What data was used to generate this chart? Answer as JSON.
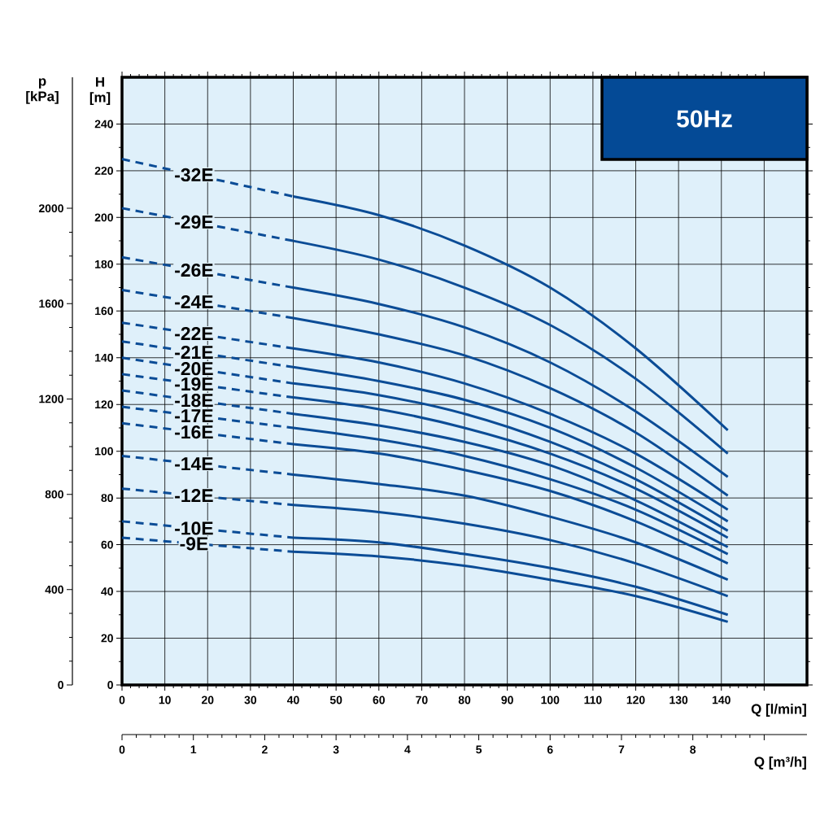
{
  "chart_data": {
    "type": "line",
    "title": "50Hz",
    "xlabel": "Q [l/min]",
    "ylabel": "H [m]",
    "y2label": "p [kPa]",
    "x2label": "Q [m³/h]",
    "xlim": [
      0,
      160
    ],
    "xticks": [
      0,
      10,
      20,
      30,
      40,
      50,
      60,
      70,
      80,
      90,
      100,
      110,
      120,
      130,
      140,
      {
        "value": 150,
        "label": null
      }
    ],
    "ylim": [
      0,
      260
    ],
    "yticks": [
      0,
      20,
      40,
      60,
      80,
      100,
      120,
      140,
      160,
      180,
      200,
      220,
      240
    ],
    "y2lim": [
      0,
      2550
    ],
    "y2ticks": [
      0,
      400,
      800,
      1200,
      1600,
      2000
    ],
    "x2lim": [
      0,
      9.6
    ],
    "x2ticks": [
      0,
      1,
      2,
      3,
      4,
      5,
      6,
      7,
      8,
      {
        "value": 9,
        "label": null
      }
    ],
    "grid": true,
    "series": [
      {
        "name": "-32E",
        "color": "#0b4c96",
        "line_style": "dashed",
        "x": [
          0,
          40
        ],
        "values": [
          225,
          209
        ]
      },
      {
        "color": "#0b4c96",
        "line_style": "solid",
        "x": [
          40,
          60,
          80,
          100,
          120,
          141.5
        ],
        "values": [
          209,
          201,
          188,
          170,
          144,
          109
        ]
      },
      {
        "name": "-29E",
        "color": "#0b4c96",
        "line_style": "dashed",
        "x": [
          0,
          40
        ],
        "values": [
          204,
          190
        ]
      },
      {
        "color": "#0b4c96",
        "line_style": "solid",
        "x": [
          40,
          60,
          80,
          100,
          120,
          141.5
        ],
        "values": [
          190,
          182,
          170,
          154,
          131,
          99
        ]
      },
      {
        "name": "-26E",
        "color": "#0b4c96",
        "line_style": "dashed",
        "x": [
          0,
          40
        ],
        "values": [
          183,
          170
        ]
      },
      {
        "color": "#0b4c96",
        "line_style": "solid",
        "x": [
          40,
          60,
          80,
          100,
          120,
          141.5
        ],
        "values": [
          170,
          163,
          153,
          138,
          117,
          89
        ]
      },
      {
        "name": "-24E",
        "color": "#0b4c96",
        "line_style": "dashed",
        "x": [
          0,
          40
        ],
        "values": [
          169,
          157
        ]
      },
      {
        "color": "#0b4c96",
        "line_style": "solid",
        "x": [
          40,
          60,
          80,
          100,
          120,
          141.5
        ],
        "values": [
          157,
          150,
          141,
          127,
          108,
          81
        ]
      },
      {
        "name": "-22E",
        "color": "#0b4c96",
        "line_style": "dashed",
        "x": [
          0,
          40
        ],
        "values": [
          155,
          144
        ]
      },
      {
        "color": "#0b4c96",
        "line_style": "solid",
        "x": [
          40,
          60,
          80,
          100,
          120,
          141.5
        ],
        "values": [
          144,
          138,
          129,
          116,
          99,
          75
        ]
      },
      {
        "name": "-21E",
        "color": "#0b4c96",
        "line_style": "dashed",
        "x": [
          0,
          40
        ],
        "values": [
          147,
          136
        ]
      },
      {
        "color": "#0b4c96",
        "line_style": "solid",
        "x": [
          40,
          60,
          80,
          100,
          120,
          141.5
        ],
        "values": [
          136,
          130,
          122,
          110,
          93,
          70
        ]
      },
      {
        "name": "-20E",
        "color": "#0b4c96",
        "line_style": "dashed",
        "x": [
          0,
          40
        ],
        "values": [
          140,
          129
        ]
      },
      {
        "color": "#0b4c96",
        "line_style": "solid",
        "x": [
          40,
          60,
          80,
          100,
          120,
          141.5
        ],
        "values": [
          129,
          124,
          116,
          104,
          88,
          66
        ]
      },
      {
        "name": "-19E",
        "color": "#0b4c96",
        "line_style": "dashed",
        "x": [
          0,
          40
        ],
        "values": [
          133,
          123
        ]
      },
      {
        "color": "#0b4c96",
        "line_style": "solid",
        "x": [
          40,
          60,
          80,
          100,
          120,
          141.5
        ],
        "values": [
          123,
          118,
          110,
          99,
          84,
          63
        ]
      },
      {
        "name": "-18E",
        "color": "#0b4c96",
        "line_style": "dashed",
        "x": [
          0,
          40
        ],
        "values": [
          126,
          116
        ]
      },
      {
        "color": "#0b4c96",
        "line_style": "solid",
        "x": [
          40,
          60,
          80,
          100,
          120,
          141.5
        ],
        "values": [
          116,
          111,
          104,
          94,
          79,
          59
        ]
      },
      {
        "name": "-17E",
        "color": "#0b4c96",
        "line_style": "dashed",
        "x": [
          0,
          40
        ],
        "values": [
          119,
          110
        ]
      },
      {
        "color": "#0b4c96",
        "line_style": "solid",
        "x": [
          40,
          60,
          80,
          100,
          120,
          141.5
        ],
        "values": [
          110,
          105,
          98,
          88,
          75,
          56
        ]
      },
      {
        "name": "-16E",
        "color": "#0b4c96",
        "line_style": "dashed",
        "x": [
          0,
          40
        ],
        "values": [
          112,
          103
        ]
      },
      {
        "color": "#0b4c96",
        "line_style": "solid",
        "x": [
          40,
          60,
          80,
          100,
          120,
          141.5
        ],
        "values": [
          103,
          99,
          92,
          83,
          70,
          52
        ]
      },
      {
        "name": "-14E",
        "color": "#0b4c96",
        "line_style": "dashed",
        "x": [
          0,
          40
        ],
        "values": [
          98,
          90
        ]
      },
      {
        "color": "#0b4c96",
        "line_style": "solid",
        "x": [
          40,
          60,
          80,
          100,
          120,
          141.5
        ],
        "values": [
          90,
          86,
          81,
          72,
          61,
          45
        ]
      },
      {
        "name": "-12E",
        "color": "#0b4c96",
        "line_style": "dashed",
        "x": [
          0,
          40
        ],
        "values": [
          84,
          77
        ]
      },
      {
        "color": "#0b4c96",
        "line_style": "solid",
        "x": [
          40,
          60,
          80,
          100,
          120,
          141.5
        ],
        "values": [
          77,
          74,
          69,
          62,
          52,
          38
        ]
      },
      {
        "name": "-10E",
        "color": "#0b4c96",
        "line_style": "dashed",
        "x": [
          0,
          40
        ],
        "values": [
          70,
          63
        ]
      },
      {
        "color": "#0b4c96",
        "line_style": "solid",
        "x": [
          40,
          60,
          80,
          100,
          120,
          141.5
        ],
        "values": [
          63,
          61,
          56,
          50,
          42,
          30
        ]
      },
      {
        "name": "-9E",
        "color": "#0b4c96",
        "line_style": "dashed",
        "x": [
          0,
          40
        ],
        "values": [
          63,
          57
        ]
      },
      {
        "color": "#0b4c96",
        "line_style": "solid",
        "x": [
          40,
          60,
          80,
          100,
          120,
          141.5
        ],
        "values": [
          57,
          55,
          51,
          45,
          38,
          27
        ]
      }
    ]
  }
}
